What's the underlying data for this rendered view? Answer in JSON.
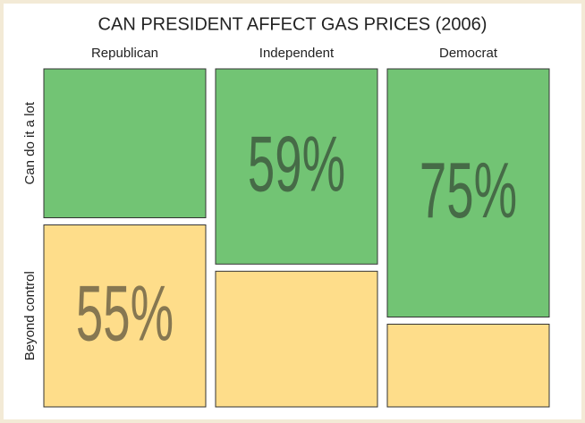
{
  "chart_data": {
    "type": "mosaic",
    "title": "CAN PRESIDENT AFFECT GAS PRICES (2006)",
    "categories": [
      "Republican",
      "Independent",
      "Democrat"
    ],
    "series": [
      {
        "name": "Can do it a lot",
        "color": "#72c474",
        "values": [
          45,
          59,
          75
        ],
        "value_labels": [
          null,
          "59%",
          "75%"
        ]
      },
      {
        "name": "Beyond control",
        "color": "#fedd8a",
        "values": [
          55,
          41,
          25
        ],
        "value_labels": [
          "55%",
          null,
          null
        ]
      }
    ]
  }
}
